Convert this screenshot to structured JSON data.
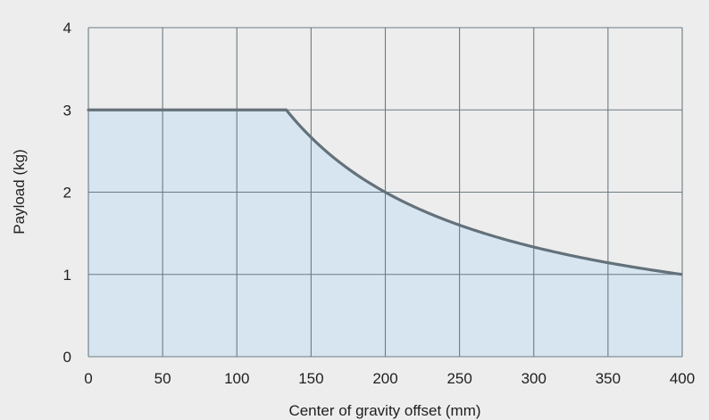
{
  "chart_data": {
    "type": "area",
    "title": "",
    "xlabel": "Center of gravity offset (mm)",
    "ylabel": "Payload (kg)",
    "xlim": [
      0,
      400
    ],
    "ylim": [
      0,
      4
    ],
    "x_ticks": [
      0,
      50,
      100,
      150,
      200,
      250,
      300,
      350,
      400
    ],
    "y_ticks": [
      0,
      1,
      2,
      3,
      4
    ],
    "grid": true,
    "series": [
      {
        "x": [
          0,
          133.3,
          150,
          200,
          250,
          300,
          350,
          400
        ],
        "y": [
          3.0,
          3.0,
          2.78,
          2.29,
          1.95,
          1.69,
          1.5,
          1.35
        ]
      }
    ],
    "colors": {
      "background": "#ededed",
      "fill": "#d6e5f0",
      "line": "#63727a",
      "grid": "#6c7b82"
    }
  }
}
